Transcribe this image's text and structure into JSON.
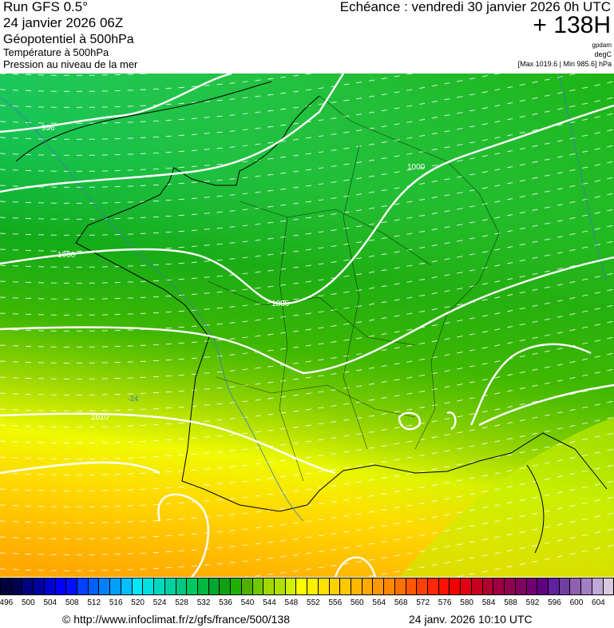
{
  "header": {
    "run": "Run GFS 0.5°",
    "run_date": "24 janvier 2026 06Z",
    "field1": "Géopotentiel à 500hPa",
    "field2": "Température à 500hPa",
    "field3": "Pression au niveau de la mer",
    "echeance": "Echéance : vendredi 30 janvier 2026 0h UTC",
    "lead": "+ 138H",
    "unit1": "gpdam",
    "unit2": "degC",
    "unit3": "[Max 1019.6 | Min 985.6] hPa"
  },
  "map": {
    "isobar_labels": [
      "996",
      "1000",
      "1000",
      "1000",
      "1010"
    ],
    "temp_label": "-24"
  },
  "colorbar": {
    "labels": [
      "496",
      "500",
      "504",
      "508",
      "512",
      "516",
      "520",
      "524",
      "528",
      "532",
      "536",
      "540",
      "544",
      "548",
      "552",
      "556",
      "560",
      "564",
      "568",
      "572",
      "576",
      "580",
      "584",
      "588",
      "592",
      "596",
      "600",
      "604"
    ],
    "colors": [
      "#000040",
      "#000050",
      "#000080",
      "#0000a0",
      "#0000d0",
      "#0000ff",
      "#0010ff",
      "#0040ff",
      "#0060ff",
      "#0080ff",
      "#00a0ff",
      "#00c0ff",
      "#00e8ff",
      "#00e0e0",
      "#00d8c0",
      "#00d0a0",
      "#00c880",
      "#00c860",
      "#00b840",
      "#00a830",
      "#10a010",
      "#20b000",
      "#50b000",
      "#70c800",
      "#a0d800",
      "#b0e000",
      "#d0f000",
      "#ffff00",
      "#fff000",
      "#ffe000",
      "#ffd000",
      "#ffc800",
      "#ffb800",
      "#ffa800",
      "#ff9800",
      "#ff8800",
      "#ff7000",
      "#ff5800",
      "#ff4000",
      "#ff2800",
      "#ff1000",
      "#f00000",
      "#e00010",
      "#c80020",
      "#b00030",
      "#a00040",
      "#900050",
      "#800060",
      "#700070",
      "#600080",
      "#6020a0",
      "#7040a0",
      "#9060b0",
      "#a080c0",
      "#c0a8d8",
      "#d8c8e0"
    ]
  },
  "footer": {
    "source": "© http://www.infoclimat.fr/z/gfs/france/500/138",
    "timestamp": "24 janv. 2026 10:10 UTC"
  }
}
